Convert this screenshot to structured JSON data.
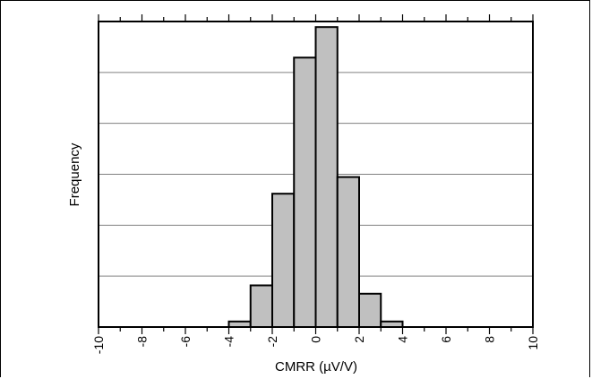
{
  "chart_data": {
    "type": "bar",
    "title": "",
    "xlabel": "CMRR (µV/V)",
    "ylabel": "Frequency",
    "xlim": [
      -10,
      10
    ],
    "ylim": [
      0,
      11
    ],
    "grid": true,
    "x_ticks": [
      "-10",
      "-8",
      "-6",
      "-4",
      "-2",
      "0",
      "2",
      "4",
      "6",
      "8",
      "10"
    ],
    "bin_width": 1,
    "bins": [
      {
        "start": -4,
        "end": -3,
        "value": 0.2
      },
      {
        "start": -3,
        "end": -2,
        "value": 1.5
      },
      {
        "start": -2,
        "end": -1,
        "value": 4.8
      },
      {
        "start": -1,
        "end": 0,
        "value": 9.7
      },
      {
        "start": 0,
        "end": 1,
        "value": 10.8
      },
      {
        "start": 1,
        "end": 2,
        "value": 5.4
      },
      {
        "start": 2,
        "end": 3,
        "value": 1.2
      },
      {
        "start": 3,
        "end": 4,
        "value": 0.2
      }
    ],
    "colors": {
      "bar_fill": "#c0c0c0",
      "bar_stroke": "#000000",
      "grid": "#808080"
    }
  }
}
